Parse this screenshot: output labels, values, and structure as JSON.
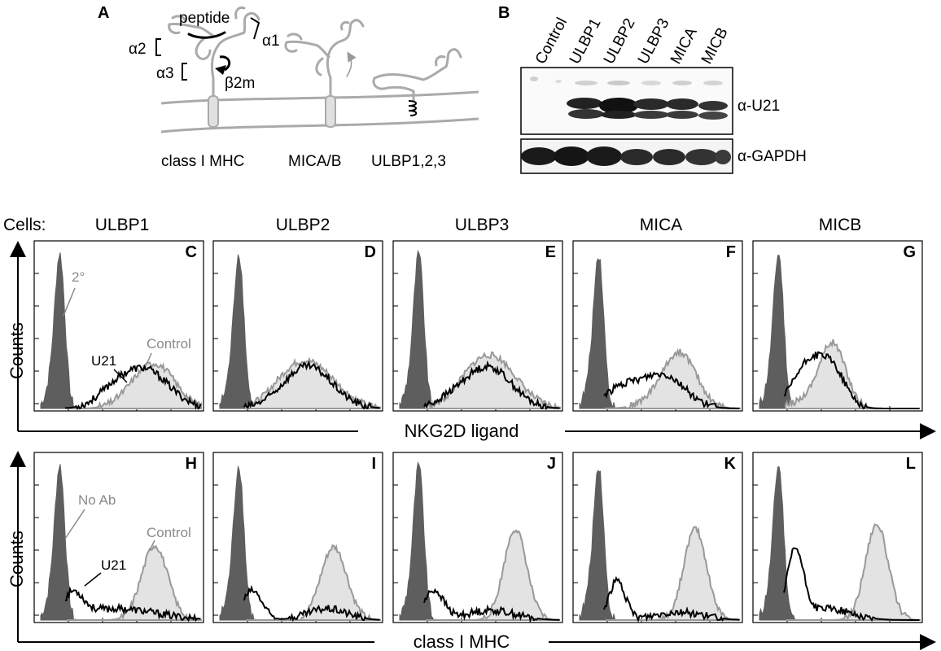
{
  "panel_a": {
    "letter": "A",
    "labels": {
      "peptide": "peptide",
      "alpha1": "α1",
      "alpha2": "α2",
      "alpha3": "α3",
      "b2m": "β2m"
    },
    "molecules": [
      "class I MHC",
      "MICA/B",
      "ULBP1,2,3"
    ]
  },
  "panel_b": {
    "letter": "B",
    "lanes": [
      "Control",
      "ULBP1",
      "ULBP2",
      "ULBP3",
      "MICA",
      "MICB"
    ],
    "blots": [
      "α-U21",
      "α-GAPDH"
    ]
  },
  "histograms": {
    "cells_label": "Cells:",
    "columns": [
      "ULBP1",
      "ULBP2",
      "ULBP3",
      "MICA",
      "MICB"
    ],
    "rows": [
      {
        "letters": [
          "C",
          "D",
          "E",
          "F",
          "G"
        ],
        "y_title": "Counts",
        "x_title": "NKG2D ligand",
        "annotations": {
          "filled": "2°",
          "u21": "U21",
          "control": "Control"
        }
      },
      {
        "letters": [
          "H",
          "I",
          "J",
          "K",
          "L"
        ],
        "y_title": "Counts",
        "x_title": "class I MHC",
        "annotations": {
          "filled": "No Ab",
          "u21": "U21",
          "control": "Control"
        }
      }
    ]
  },
  "colors": {
    "secondary_fill": "#5e5e5e",
    "control_fill": "#e3e3e3",
    "control_line": "#999999",
    "u21_line": "#000000",
    "annotation": "#8a8a8a"
  }
}
